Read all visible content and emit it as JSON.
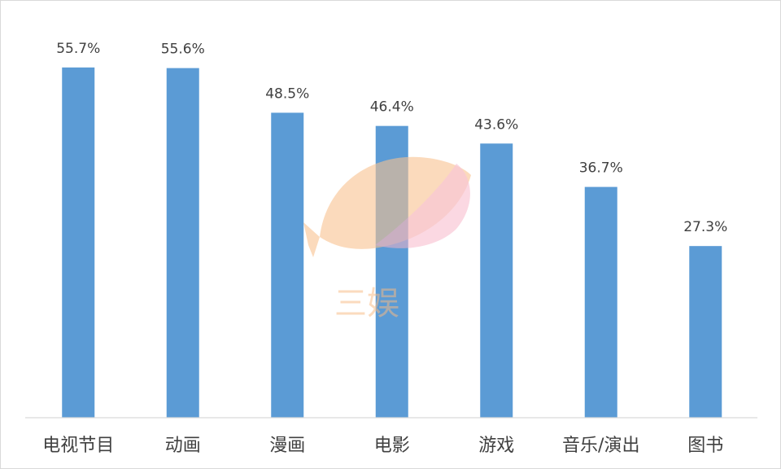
{
  "chart_data": {
    "type": "bar",
    "categories": [
      "电视节目",
      "动画",
      "漫画",
      "电影",
      "游戏",
      "音乐/演出",
      "图书"
    ],
    "values": [
      55.7,
      55.6,
      48.5,
      46.4,
      43.6,
      36.7,
      27.3
    ],
    "value_labels": [
      "55.7%",
      "55.6%",
      "48.5%",
      "46.4%",
      "43.6%",
      "36.7%",
      "27.3%"
    ],
    "unit": "%",
    "title": "",
    "xlabel": "",
    "ylabel": "",
    "ylim": [
      0,
      60
    ],
    "grid": false,
    "legend": "none",
    "bar_color": "#5b9bd5"
  },
  "watermark": {
    "text": "三娱",
    "colors": [
      "#f7b983",
      "#f6b3c8"
    ]
  }
}
